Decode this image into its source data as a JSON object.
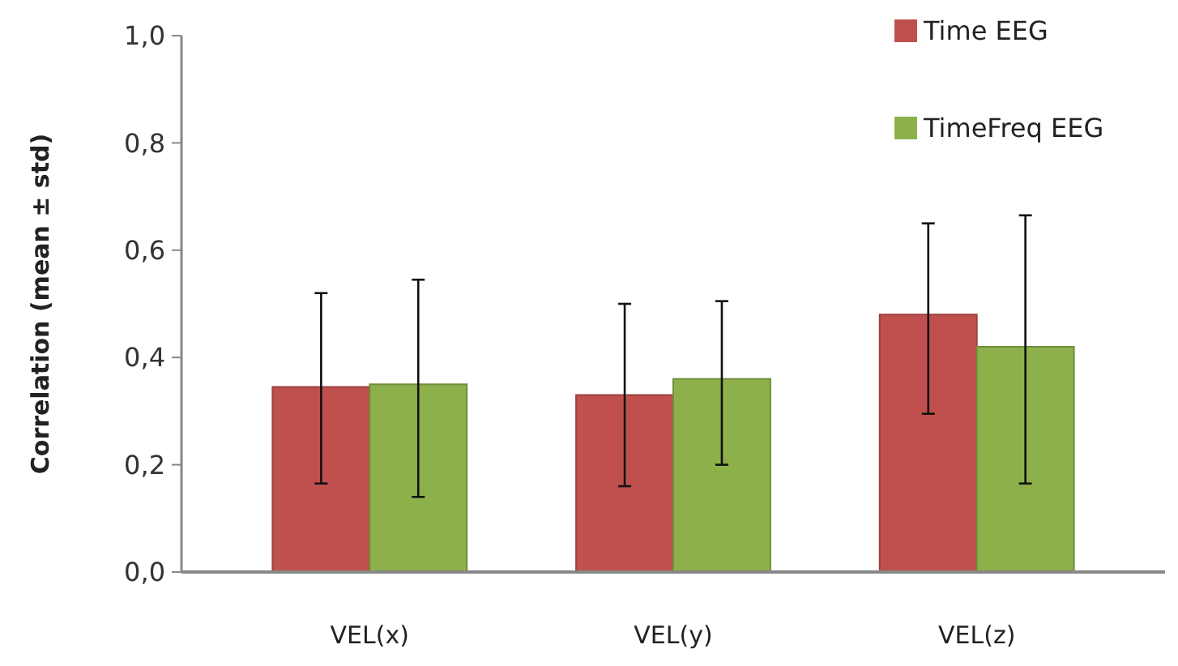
{
  "chart_data": {
    "type": "bar",
    "ylabel": "Correlation (mean ± std)",
    "categories": [
      "VEL(x)",
      "VEL(y)",
      "VEL(z)"
    ],
    "series": [
      {
        "name": "Time EEG",
        "color": "#c0504d",
        "values": [
          0.345,
          0.33,
          0.48
        ],
        "errors": [
          [
            0.165,
            0.52
          ],
          [
            0.16,
            0.5
          ],
          [
            0.295,
            0.65
          ]
        ]
      },
      {
        "name": "TimeFreq EEG",
        "color": "#8db04a",
        "values": [
          0.35,
          0.36,
          0.42
        ],
        "errors": [
          [
            0.14,
            0.545
          ],
          [
            0.2,
            0.505
          ],
          [
            0.165,
            0.665
          ]
        ]
      }
    ],
    "ylim": [
      0,
      1
    ],
    "yticks": [
      {
        "value": 0,
        "label": "0,0"
      },
      {
        "value": 0.2,
        "label": "0,2"
      },
      {
        "value": 0.4,
        "label": "0,4"
      },
      {
        "value": 0.6,
        "label": "0,6"
      },
      {
        "value": 0.8,
        "label": "0,8"
      },
      {
        "value": 1,
        "label": "1,0"
      }
    ],
    "grid": false,
    "legend": "top right"
  }
}
